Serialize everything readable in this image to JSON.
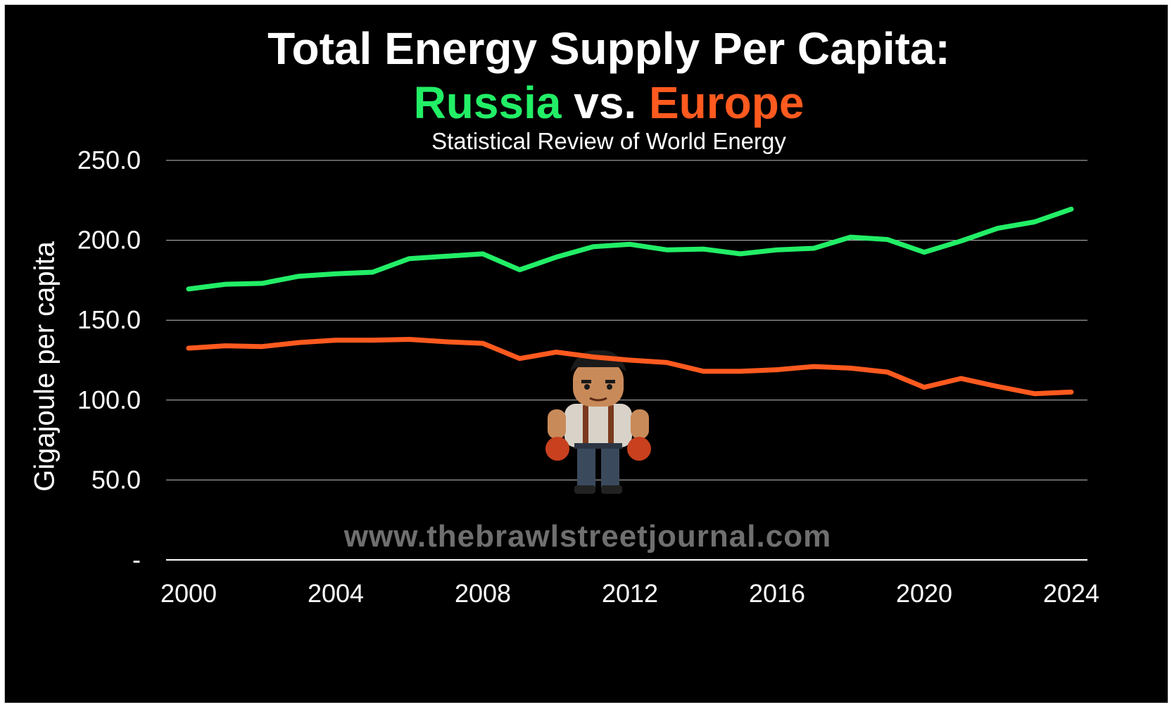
{
  "colors": {
    "background": "#000000",
    "russia": "#22ee66",
    "europe": "#ff5a1f",
    "grid": "#bfbfbf",
    "text": "#ffffff",
    "watermark": "#6f6f6f"
  },
  "title": {
    "line1": "Total Energy Supply Per Capita:",
    "russia": "Russia",
    "vs": " vs. ",
    "europe": "Europe"
  },
  "subtitle": "Statistical Review of World Energy",
  "watermark": "www.thebrawlstreetjournal.com",
  "mascot_icon": "brawler-mascot-icon",
  "chart_data": {
    "type": "line",
    "title": "Total Energy Supply Per Capita: Russia vs. Europe",
    "subtitle": "Statistical Review of World Energy",
    "xlabel": "",
    "ylabel": "Gigajoule per capita",
    "ylim": [
      0,
      250
    ],
    "xlim": [
      2000,
      2024
    ],
    "grid": true,
    "legend": "none (series named in title)",
    "y_ticks": [
      0,
      50,
      100,
      150,
      200,
      250
    ],
    "y_tick_labels": [
      "-",
      "50.0",
      "100.0",
      "150.0",
      "200.0",
      "250.0"
    ],
    "x_ticks": [
      2000,
      2004,
      2008,
      2012,
      2016,
      2020,
      2024
    ],
    "x_tick_labels": [
      "2000",
      "2004",
      "2008",
      "2012",
      "2016",
      "2020",
      "2024"
    ],
    "x": [
      2000,
      2001,
      2002,
      2003,
      2004,
      2005,
      2006,
      2007,
      2008,
      2009,
      2010,
      2011,
      2012,
      2013,
      2014,
      2015,
      2016,
      2017,
      2018,
      2019,
      2020,
      2021,
      2022,
      2023,
      2024
    ],
    "series": [
      {
        "name": "Russia",
        "color": "#22ee66",
        "values": [
          169.5,
          172.5,
          173.0,
          177.5,
          179.0,
          180.0,
          188.5,
          190.0,
          191.5,
          181.5,
          189.5,
          196.0,
          197.5,
          194.0,
          194.5,
          191.5,
          194.0,
          195.0,
          202.0,
          200.5,
          192.5,
          199.5,
          207.5,
          211.5,
          219.5
        ]
      },
      {
        "name": "Europe",
        "color": "#ff5a1f",
        "values": [
          132.5,
          134.0,
          133.5,
          136.0,
          137.5,
          137.5,
          138.0,
          136.5,
          135.5,
          126.0,
          130.0,
          127.0,
          125.0,
          123.5,
          118.0,
          118.0,
          119.0,
          121.0,
          120.0,
          117.5,
          108.0,
          113.5,
          108.5,
          104.0,
          105.0
        ]
      }
    ]
  }
}
